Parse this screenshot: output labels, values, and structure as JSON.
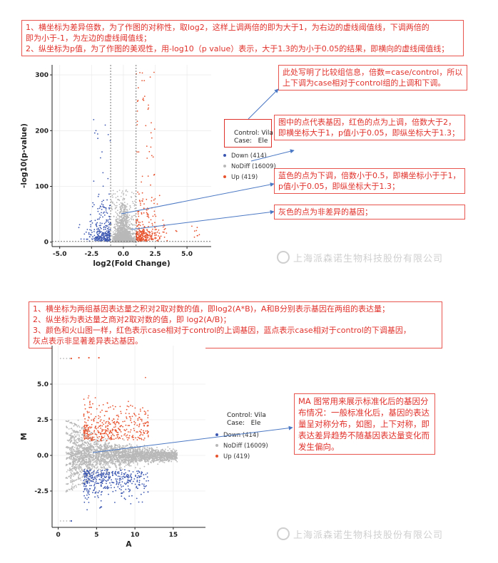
{
  "notes": {
    "top": [
      "1、横坐标为差异倍数，为了作图的对称性，取log2，这样上调两倍的即为大于1，为右边的虚线阈值线，下调两倍的",
      "即为小于-1，为左边的虚线阈值线；",
      "2、纵坐标为p值，为了作图的美观性，用-log10（p value）表示，大于1.3的为小于0.05的结果，即横向的虚线阈值线；"
    ],
    "compare": "此处写明了比较组信息，倍数=case/control，所以上下调为case相对于control组的上调和下调。",
    "red_points": "图中的点代表基因，红色的点为上调，倍数大于2，即横坐标大于1，p值小于0.05，即纵坐标大于1.3；",
    "blue_points": "蓝色的点为下调，倍数小于0.5，即横坐标小于于1，p值小于0.05，即纵坐标大于1.3；",
    "gray_points": "灰色的点为非差异的基因；",
    "ma_top": [
      "1、横坐标为两组基因表达量之积对2取对数的值，即log2(A*B)，A和B分别表示基因在两组的表达量；",
      "2、纵坐标为表达量之商对2取对数的值，即 log2(A/B)；",
      "3、颜色和火山图一样，红色表示case相对于control的上调基因，蓝点表示case相对于control的下调基因，",
      "灰点表示非显著差异表达基因。"
    ],
    "ma_right": "MA 图常用来展示标准化后的基因分布情况：一般标准化后，基因的表达量呈对称分布，如图，上下对称，即表达差异趋势不随基因表达量变化而发生偏向。"
  },
  "watermark": "上海派森诺生物科技股份有限公司",
  "colors": {
    "up": "#e8542f",
    "down": "#3a56b0",
    "nodiff": "#b8b8b8",
    "note": "#e0302a",
    "arrow": "#4a78c4"
  },
  "chart_data": [
    {
      "type": "scatter",
      "xlabel": "log2(Fold Change)",
      "ylabel": "-log10(p-value)",
      "xlim": [
        -5.6,
        6.9
      ],
      "ylim": [
        -8,
        318
      ],
      "xticks": [
        "-5.0",
        "-2.5",
        "0.0",
        "2.5",
        "5.0"
      ],
      "xtick_values": [
        -5,
        -2.5,
        0,
        2.5,
        5
      ],
      "yticks": [
        "0",
        "100",
        "200",
        "300"
      ],
      "ytick_values": [
        0,
        100,
        200,
        300
      ],
      "thresholds": {
        "x": [
          -1,
          1
        ],
        "y": 1.3
      },
      "grid": true,
      "legend_position": "right",
      "legend": {
        "title": [
          "Control: Vila",
          "Case:   Ele"
        ],
        "entries": [
          "Down (414)",
          "NoDiff (16009)",
          "Up (419)"
        ]
      },
      "series": [
        {
          "name": "Down (414)",
          "count": 414
        },
        {
          "name": "NoDiff (16009)",
          "count": 16009
        },
        {
          "name": "Up (419)",
          "count": 419
        }
      ]
    },
    {
      "type": "scatter",
      "xlabel": "A",
      "ylabel": "M",
      "xlim": [
        -0.8,
        19.2
      ],
      "ylim": [
        -5.05,
        7.7
      ],
      "xticks": [
        "0",
        "5",
        "10",
        "15"
      ],
      "xtick_values": [
        0,
        5,
        10,
        15
      ],
      "yticks": [
        "-2.5",
        "0.0",
        "2.5",
        "5.0"
      ],
      "ytick_values": [
        -2.5,
        0,
        2.5,
        5
      ],
      "grid": true,
      "legend_position": "right",
      "legend": {
        "title": [
          "Control: Vila",
          "Case:   Ele"
        ],
        "entries": [
          "Down (414)",
          "NoDiff (16009)",
          "Up (419)"
        ]
      },
      "series": [
        {
          "name": "Down (414)",
          "count": 414
        },
        {
          "name": "NoDiff (16009)",
          "count": 16009
        },
        {
          "name": "Up (419)",
          "count": 419
        }
      ]
    }
  ]
}
